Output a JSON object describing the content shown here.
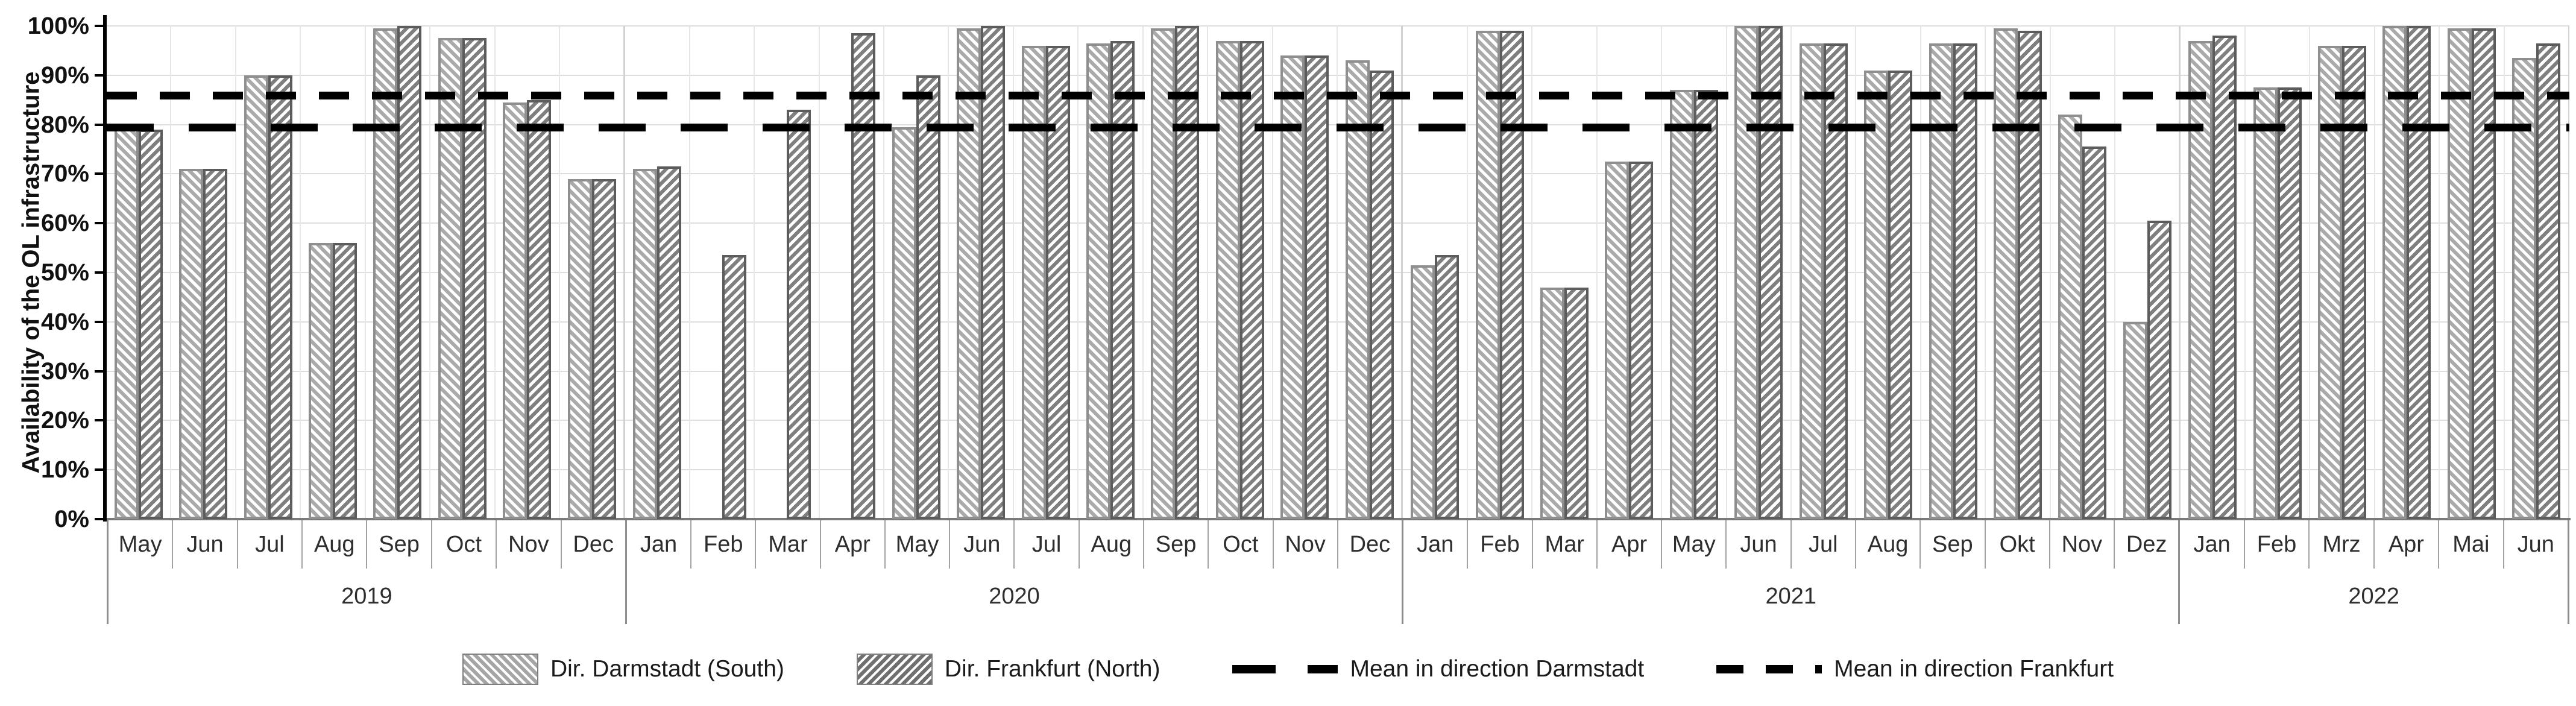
{
  "chart_data": {
    "type": "bar",
    "title": "",
    "xlabel": "",
    "ylabel": "Availability of the OL infrastructure",
    "ylim": [
      0,
      100
    ],
    "grid": true,
    "legend_position": "bottom",
    "yticks": [
      "0%",
      "10%",
      "20%",
      "30%",
      "40%",
      "50%",
      "60%",
      "70%",
      "80%",
      "90%",
      "100%"
    ],
    "year_groups": [
      {
        "year": "2019",
        "months": [
          "May",
          "Jun",
          "Jul",
          "Aug",
          "Sep",
          "Oct",
          "Nov",
          "Dec"
        ]
      },
      {
        "year": "2020",
        "months": [
          "Jan",
          "Feb",
          "Mar",
          "Apr",
          "May",
          "Jun",
          "Jul",
          "Aug",
          "Sep",
          "Oct",
          "Nov",
          "Dec"
        ]
      },
      {
        "year": "2021",
        "months": [
          "Jan",
          "Feb",
          "Mar",
          "Apr",
          "May",
          "Jun",
          "Jul",
          "Aug",
          "Sep",
          "Okt",
          "Nov",
          "Dez"
        ]
      },
      {
        "year": "2022",
        "months": [
          "Jan",
          "Feb",
          "Mrz",
          "Apr",
          "Mai",
          "Jun"
        ]
      }
    ],
    "series": [
      {
        "name": "Dir. Darmstadt (South)",
        "hatch": "backslash-diagonal",
        "fill_color": "#aaaaaa",
        "border_color": "#8f8f8f",
        "values": [
          80,
          71,
          90,
          56,
          99.5,
          97.5,
          84.5,
          69,
          71,
          null,
          null,
          null,
          79.5,
          99.5,
          96,
          96.5,
          99.5,
          97,
          94,
          93,
          51.5,
          99,
          47,
          72.5,
          87,
          100,
          96.5,
          91,
          96.5,
          99.5,
          82,
          40,
          97,
          87.5,
          96,
          100,
          99.5,
          93.5
        ]
      },
      {
        "name": "Dir. Frankfurt (North)",
        "hatch": "slash-diagonal",
        "fill_color": "#7f7f7f",
        "border_color": "#5c5c5c",
        "values": [
          79,
          71,
          90,
          56,
          100,
          97.5,
          85,
          69,
          71.5,
          53.5,
          83,
          98.5,
          90,
          100,
          96,
          97,
          100,
          97,
          94,
          91,
          53.5,
          99,
          47,
          72.5,
          87,
          100,
          96.5,
          91,
          96.5,
          99,
          75.5,
          60.5,
          98,
          87.5,
          96,
          100,
          99.5,
          96.5
        ]
      }
    ],
    "mean_lines": [
      {
        "name": "Mean in direction Darmstadt",
        "value": 79.5,
        "dash": "long",
        "color": "#000000"
      },
      {
        "name": "Mean in direction Frankfurt",
        "value": 86,
        "dash": "short",
        "color": "#000000"
      }
    ]
  }
}
